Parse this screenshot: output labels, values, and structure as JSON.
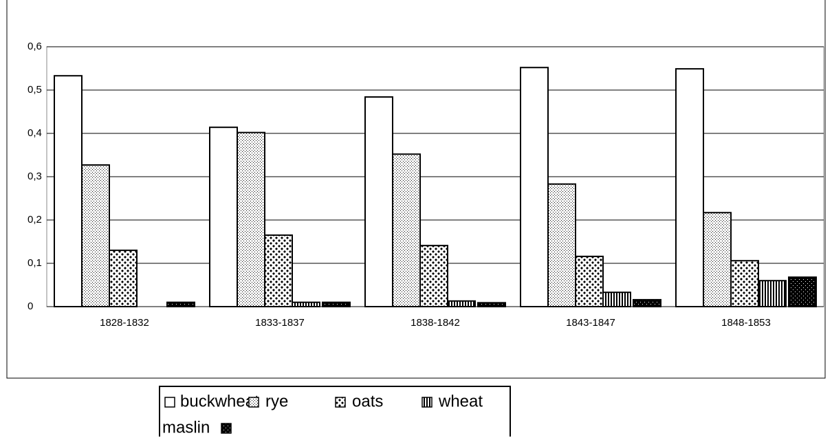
{
  "chart_data": {
    "type": "bar",
    "categories": [
      "1828-1832",
      "1833-1837",
      "1838-1842",
      "1843-1847",
      "1848-1853"
    ],
    "series": [
      {
        "name": "buckwheat",
        "color": "#ffffff",
        "pattern": "none",
        "values": [
          0.533,
          0.414,
          0.484,
          0.552,
          0.549
        ]
      },
      {
        "name": "rye",
        "color": "#ffffff",
        "pattern": "dots",
        "values": [
          0.327,
          0.402,
          0.352,
          0.283,
          0.217
        ]
      },
      {
        "name": "oats",
        "color": "#ffffff",
        "pattern": "diamonds",
        "values": [
          0.13,
          0.165,
          0.141,
          0.116,
          0.106
        ]
      },
      {
        "name": "wheat",
        "color": "#ffffff",
        "pattern": "vstripes",
        "values": [
          0,
          0.01,
          0.013,
          0.033,
          0.06
        ]
      },
      {
        "name": "maslin",
        "color": "#000000",
        "pattern": "dark",
        "values": [
          0.01,
          0.01,
          0.009,
          0.016,
          0.068
        ]
      }
    ],
    "ylim": [
      0,
      0.6
    ],
    "yticks": [
      0,
      {
        "value": 0.1,
        "label": "0,1"
      },
      {
        "value": 0.2,
        "label": "0,2"
      },
      {
        "value": 0.3,
        "label": "0,3"
      },
      {
        "value": 0.4,
        "label": "0,4"
      },
      {
        "value": 0.5,
        "label": "0,5"
      },
      {
        "value": 0.6,
        "label": "0,6"
      }
    ],
    "grid": true
  }
}
